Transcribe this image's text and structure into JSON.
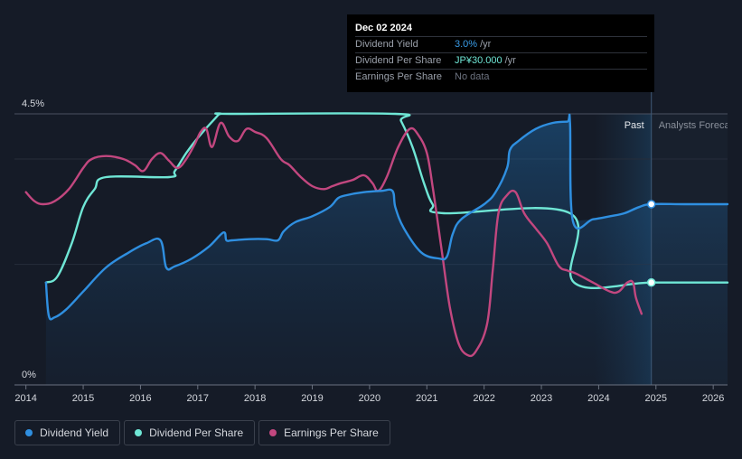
{
  "tooltip": {
    "date": "Dec 02 2024",
    "rows": [
      {
        "label": "Dividend Yield",
        "value": "3.0%",
        "unit": "/yr",
        "color": "#3a9de8"
      },
      {
        "label": "Dividend Per Share",
        "value": "JP¥30.000",
        "unit": "/yr",
        "color": "#6fe6d5"
      },
      {
        "label": "Earnings Per Share",
        "value": "No data",
        "unit": "",
        "color": "#6d7380"
      }
    ]
  },
  "legend": [
    {
      "label": "Dividend Yield",
      "color": "#2f8fe0"
    },
    {
      "label": "Dividend Per Share",
      "color": "#6fe6d5"
    },
    {
      "label": "Earnings Per Share",
      "color": "#c2477f"
    }
  ],
  "chart_data": {
    "type": "line",
    "y_axis_labels": {
      "top": "4.5%",
      "bottom": "0%"
    },
    "ylim": [
      0,
      4.5
    ],
    "xlim": [
      2013.8,
      2026.25
    ],
    "x_ticks": [
      "2014",
      "2015",
      "2016",
      "2017",
      "2018",
      "2019",
      "2020",
      "2021",
      "2022",
      "2023",
      "2024",
      "2025",
      "2026"
    ],
    "x_tick_values": [
      2014,
      2015,
      2016,
      2017,
      2018,
      2019,
      2020,
      2021,
      2022,
      2023,
      2024,
      2025,
      2026
    ],
    "past_label": "Past",
    "forecast_label": "Analysts Forecasts",
    "forecast_start": 2024.92,
    "past_shade_start": 2023.92,
    "series": [
      {
        "name": "Dividend Yield",
        "color": "#2f8fe0",
        "x": [
          2014.35,
          2014.4,
          2014.5,
          2014.7,
          2015.0,
          2015.4,
          2015.8,
          2016.1,
          2016.35,
          2016.45,
          2016.6,
          2016.9,
          2017.2,
          2017.45,
          2017.5,
          2017.6,
          2017.9,
          2018.2,
          2018.4,
          2018.5,
          2018.7,
          2019.0,
          2019.3,
          2019.45,
          2019.6,
          2019.9,
          2020.2,
          2020.4,
          2020.45,
          2020.6,
          2020.9,
          2021.2,
          2021.35,
          2021.45,
          2021.6,
          2022.0,
          2022.2,
          2022.4,
          2022.45,
          2022.6,
          2022.9,
          2023.2,
          2023.45,
          2023.5,
          2023.55,
          2023.9,
          2024.2,
          2024.45,
          2024.7,
          2024.92,
          2025.5,
          2026.25
        ],
        "y": [
          1.7,
          1.15,
          1.12,
          1.25,
          1.55,
          1.95,
          2.2,
          2.35,
          2.4,
          1.95,
          1.97,
          2.1,
          2.3,
          2.53,
          2.4,
          2.4,
          2.42,
          2.42,
          2.4,
          2.55,
          2.7,
          2.8,
          2.95,
          3.1,
          3.15,
          3.2,
          3.22,
          3.22,
          2.95,
          2.6,
          2.2,
          2.1,
          2.13,
          2.5,
          2.75,
          3.0,
          3.2,
          3.6,
          3.9,
          4.05,
          4.25,
          4.35,
          4.37,
          4.35,
          2.72,
          2.75,
          2.8,
          2.85,
          2.95,
          3.0,
          3.0,
          3.0
        ]
      },
      {
        "name": "Dividend Per Share",
        "color": "#6fe6d5",
        "x": [
          2014.35,
          2014.55,
          2014.8,
          2015.0,
          2015.2,
          2015.4,
          2016.5,
          2016.6,
          2016.8,
          2017.0,
          2017.3,
          2017.4,
          2017.6,
          2020.45,
          2020.55,
          2020.75,
          2020.95,
          2021.1,
          2021.3,
          2023.5,
          2023.57,
          2024.92,
          2026.25
        ],
        "y": [
          1.7,
          1.8,
          2.35,
          2.95,
          3.25,
          3.45,
          3.45,
          3.55,
          3.85,
          4.1,
          4.42,
          4.5,
          4.5,
          4.5,
          4.38,
          3.95,
          3.35,
          3.0,
          2.85,
          2.85,
          1.7,
          1.7,
          1.7
        ]
      },
      {
        "name": "Earnings Per Share",
        "color": "#c2477f",
        "x": [
          2014.0,
          2014.15,
          2014.3,
          2014.5,
          2014.75,
          2015.0,
          2015.15,
          2015.4,
          2015.7,
          2015.9,
          2016.05,
          2016.2,
          2016.35,
          2016.5,
          2016.65,
          2016.8,
          2016.95,
          2017.05,
          2017.15,
          2017.25,
          2017.4,
          2017.55,
          2017.7,
          2017.85,
          2018.0,
          2018.2,
          2018.45,
          2018.6,
          2018.8,
          2019.0,
          2019.2,
          2019.35,
          2019.5,
          2019.7,
          2019.9,
          2020.05,
          2020.15,
          2020.3,
          2020.5,
          2020.7,
          2020.85,
          2021.0,
          2021.1,
          2021.25,
          2021.4,
          2021.55,
          2021.7,
          2021.85,
          2022.05,
          2022.15,
          2022.25,
          2022.4,
          2022.55,
          2022.7,
          2022.9,
          2023.1,
          2023.3,
          2023.45,
          2023.6,
          2023.9,
          2024.2,
          2024.35,
          2024.5,
          2024.6,
          2024.65,
          2024.75
        ],
        "y": [
          3.2,
          3.05,
          3.0,
          3.05,
          3.25,
          3.6,
          3.75,
          3.8,
          3.75,
          3.65,
          3.55,
          3.75,
          3.85,
          3.72,
          3.6,
          3.75,
          4.0,
          4.2,
          4.25,
          3.95,
          4.35,
          4.12,
          4.05,
          4.25,
          4.2,
          4.1,
          3.75,
          3.65,
          3.45,
          3.3,
          3.25,
          3.3,
          3.35,
          3.4,
          3.48,
          3.35,
          3.22,
          3.45,
          3.95,
          4.25,
          4.15,
          3.85,
          3.3,
          2.3,
          1.3,
          0.7,
          0.5,
          0.55,
          1.0,
          1.9,
          2.85,
          3.15,
          3.2,
          2.85,
          2.6,
          2.35,
          1.98,
          1.9,
          1.85,
          1.7,
          1.55,
          1.55,
          1.7,
          1.7,
          1.45,
          1.18
        ]
      }
    ]
  }
}
